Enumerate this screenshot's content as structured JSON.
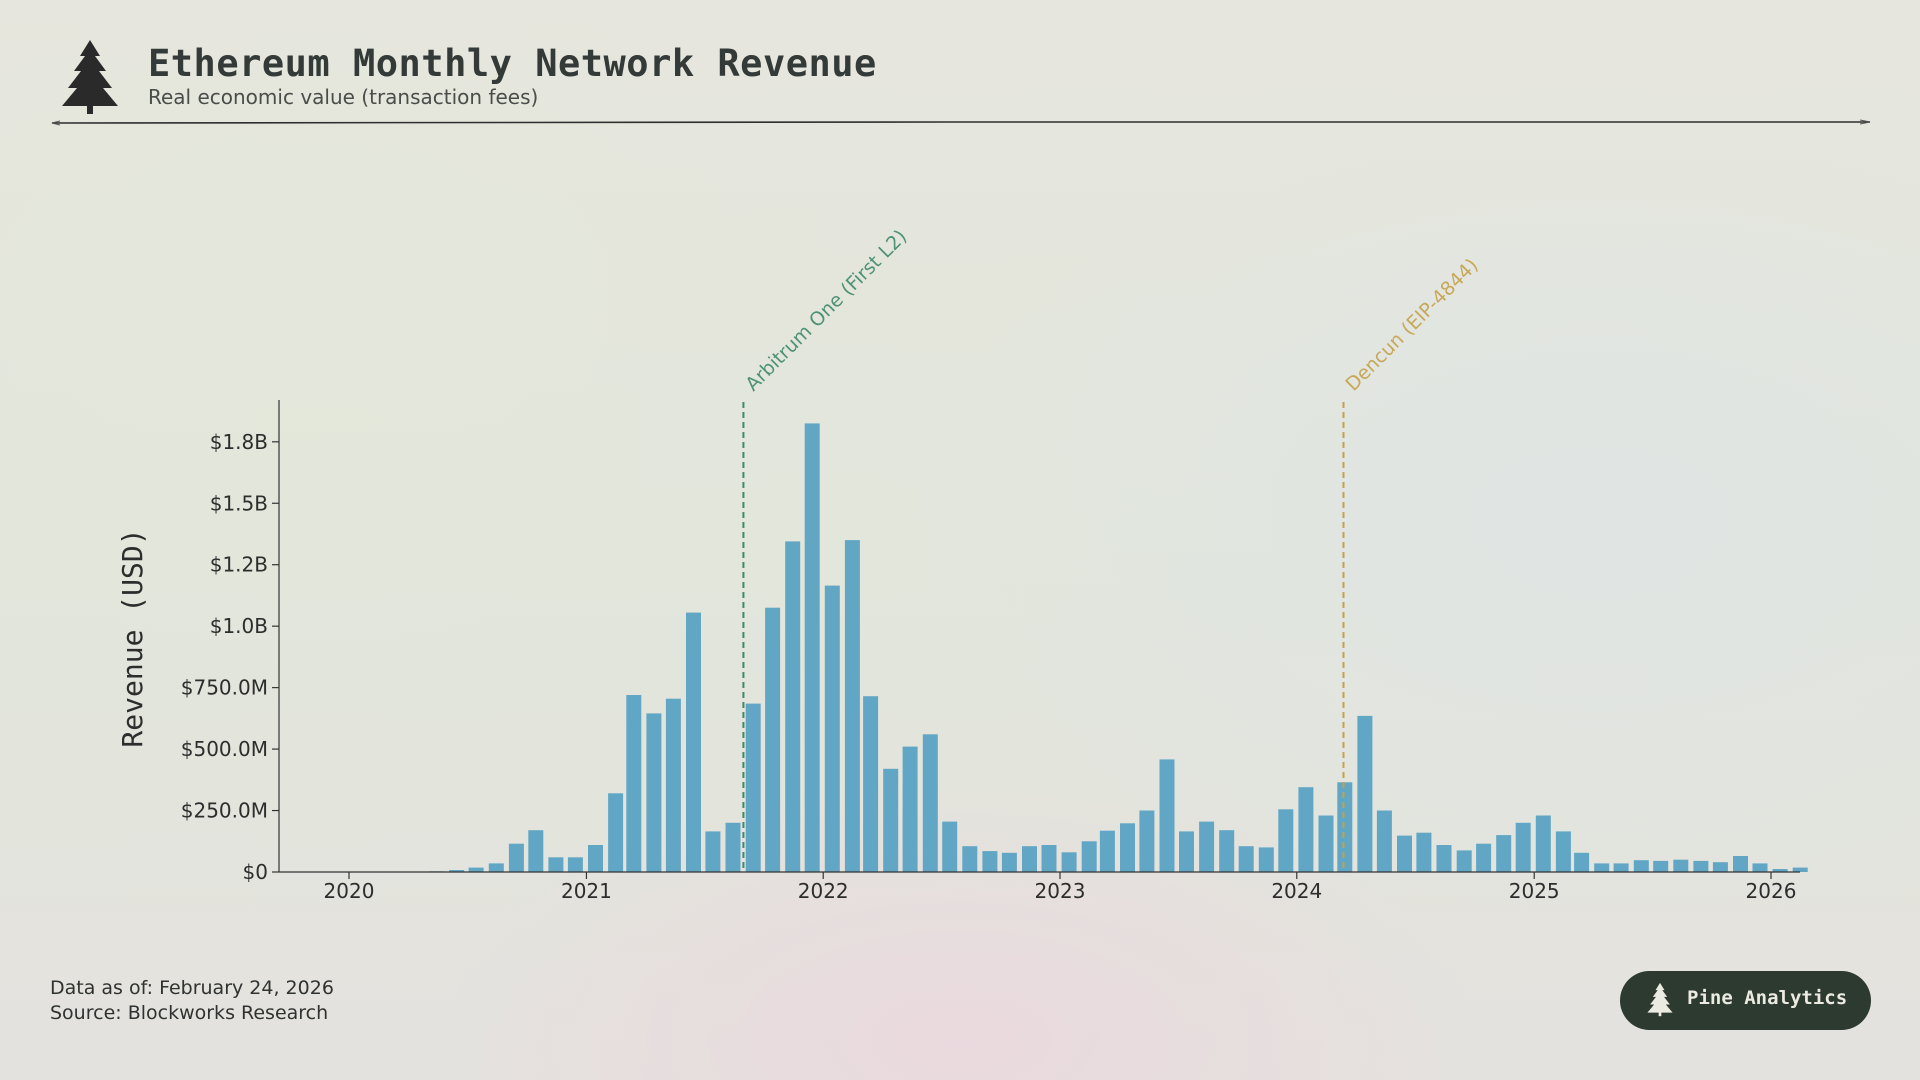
{
  "header": {
    "title": "Ethereum Monthly Network Revenue",
    "subtitle": "Real economic value (transaction fees)",
    "logo_icon": "pine-tree-icon"
  },
  "footer": {
    "data_as_of": "Data as of: February 24, 2026",
    "source": "Source: Blockworks Research"
  },
  "badge": {
    "label": "Pine Analytics",
    "icon": "pine-tree-icon"
  },
  "colors": {
    "bar": "#5aa3c3",
    "arbitrum_line": "#3e8a6b",
    "dencun_line": "#c5a24a",
    "badge_bg": "#2d3a30"
  },
  "chart_data": {
    "type": "bar",
    "title": "",
    "xlabel": "",
    "ylabel": "Revenue (USD)",
    "ylim": [
      0,
      1920000000.0
    ],
    "yticks": [
      0,
      250000000,
      500000000,
      750000000,
      1000000000,
      1250000000,
      1500000000,
      1750000000
    ],
    "ytick_labels": [
      "$0",
      "$250.0M",
      "$500.0M",
      "$750.0M",
      "$1.0B",
      "$1.2B",
      "$1.5B",
      "$1.8B"
    ],
    "xticks": [
      "2020-01",
      "2021-01",
      "2022-01",
      "2023-01",
      "2024-01",
      "2025-01",
      "2026-01"
    ],
    "xtick_labels": [
      "2020",
      "2021",
      "2022",
      "2023",
      "2024",
      "2025",
      "2026"
    ],
    "grid": false,
    "categories": [
      "2019-11",
      "2019-12",
      "2020-01",
      "2020-02",
      "2020-03",
      "2020-04",
      "2020-05",
      "2020-06",
      "2020-07",
      "2020-08",
      "2020-09",
      "2020-10",
      "2020-11",
      "2020-12",
      "2021-01",
      "2021-02",
      "2021-03",
      "2021-04",
      "2021-05",
      "2021-06",
      "2021-07",
      "2021-08",
      "2021-09",
      "2021-10",
      "2021-11",
      "2021-12",
      "2022-01",
      "2022-02",
      "2022-03",
      "2022-04",
      "2022-05",
      "2022-06",
      "2022-07",
      "2022-08",
      "2022-09",
      "2022-10",
      "2022-11",
      "2022-12",
      "2023-01",
      "2023-02",
      "2023-03",
      "2023-04",
      "2023-05",
      "2023-06",
      "2023-07",
      "2023-08",
      "2023-09",
      "2023-10",
      "2023-11",
      "2023-12",
      "2024-01",
      "2024-02",
      "2024-03",
      "2024-04",
      "2024-05",
      "2024-06",
      "2024-07",
      "2024-08",
      "2024-09",
      "2024-10",
      "2024-11",
      "2024-12",
      "2025-01",
      "2025-02",
      "2025-03",
      "2025-04",
      "2025-05",
      "2025-06",
      "2025-07",
      "2025-08",
      "2025-09",
      "2025-10",
      "2025-11",
      "2025-12",
      "2026-01",
      "2026-02"
    ],
    "series": [
      {
        "values": [
          500000,
          800000,
          1000000,
          1500000,
          2000000,
          2000000,
          3000000,
          8000000,
          18000000,
          35000000,
          115000000,
          170000000,
          60000000,
          60000000,
          110000000,
          320000000,
          720000000,
          645000000,
          705000000,
          1055000000,
          165000000,
          200000000,
          685000000,
          1075000000,
          1345000000,
          1825000000,
          1165000000,
          1350000000,
          715000000,
          420000000,
          510000000,
          560000000,
          205000000,
          105000000,
          85000000,
          78000000,
          105000000,
          110000000,
          80000000,
          125000000,
          168000000,
          198000000,
          250000000,
          458000000,
          165000000,
          205000000,
          170000000,
          105000000,
          100000000,
          255000000,
          345000000,
          230000000,
          365000000,
          635000000,
          250000000,
          148000000,
          160000000,
          110000000,
          88000000,
          115000000,
          150000000,
          200000000,
          230000000,
          165000000,
          78000000,
          35000000,
          35000000,
          48000000,
          45000000,
          50000000,
          45000000,
          40000000,
          65000000,
          35000000,
          12000000,
          18000000
        ]
      }
    ],
    "annotations": [
      {
        "label": "Arbitrum One (First L2)",
        "date": "2021-08-31"
      },
      {
        "label": "Dencun (EIP-4844)",
        "date": "2024-03-13"
      }
    ]
  }
}
